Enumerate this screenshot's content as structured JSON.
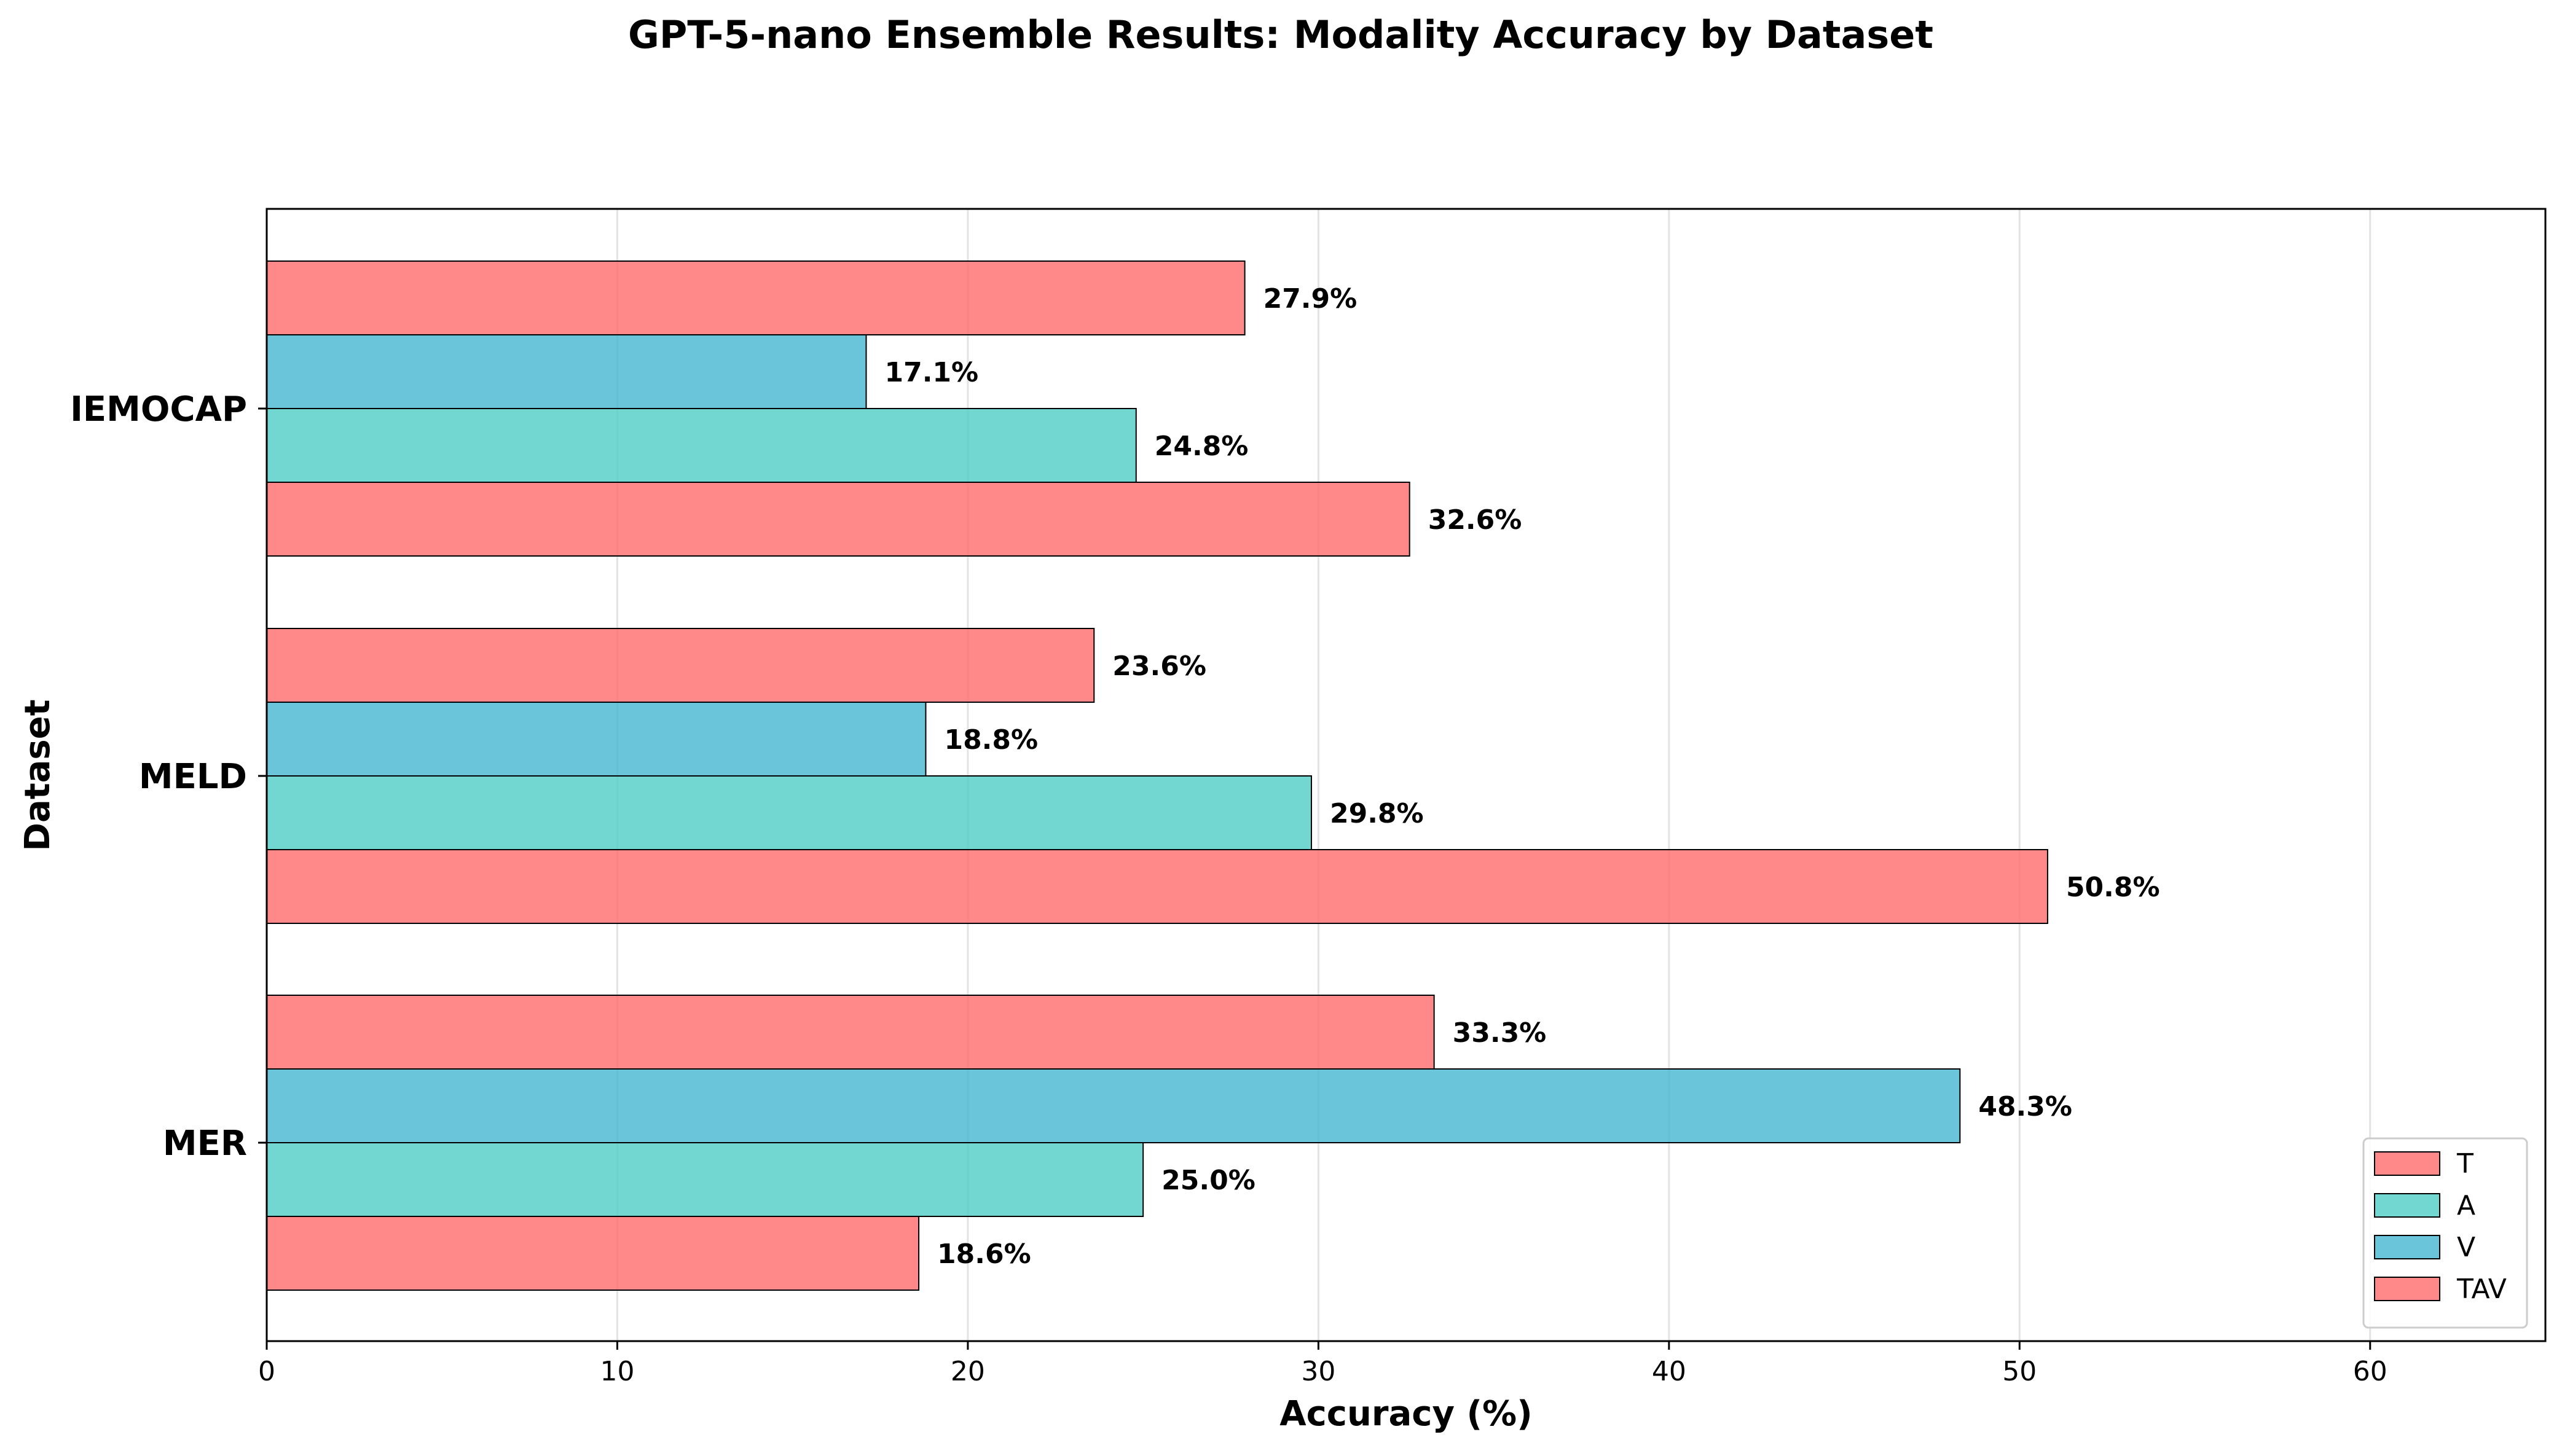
{
  "chart_data": {
    "type": "bar",
    "orientation": "horizontal",
    "title": "GPT-5-nano Ensemble Results: Modality Accuracy by Dataset",
    "xlabel": "Accuracy (%)",
    "ylabel": "Dataset",
    "xlim": [
      0,
      65
    ],
    "xticks": [
      "0",
      "10",
      "20",
      "30",
      "40",
      "50",
      "60"
    ],
    "grid": "vertical",
    "legend_position": "lower-right",
    "categories": [
      "IEMOCAP",
      "MELD",
      "MER"
    ],
    "series": [
      {
        "name": "T",
        "color": "#FF6B6B",
        "values": [
          27.9,
          23.6,
          33.3
        ],
        "labels": [
          "27.9%",
          "23.6%",
          "33.3%"
        ]
      },
      {
        "name": "A",
        "color": "#4ECDC4",
        "values": [
          24.8,
          29.8,
          25.0
        ],
        "labels": [
          "24.8%",
          "29.8%",
          "25.0%"
        ]
      },
      {
        "name": "V",
        "color": "#45B7D1",
        "values": [
          17.1,
          18.8,
          48.3
        ],
        "labels": [
          "17.1%",
          "18.8%",
          "48.3%"
        ]
      },
      {
        "name": "TAV",
        "color": "#FF6B6B",
        "values": [
          32.6,
          50.8,
          18.6
        ],
        "labels": [
          "32.6%",
          "50.8%",
          "18.6%"
        ]
      }
    ],
    "bar_stack_order_top_to_bottom": [
      "T",
      "V",
      "A",
      "TAV"
    ]
  }
}
